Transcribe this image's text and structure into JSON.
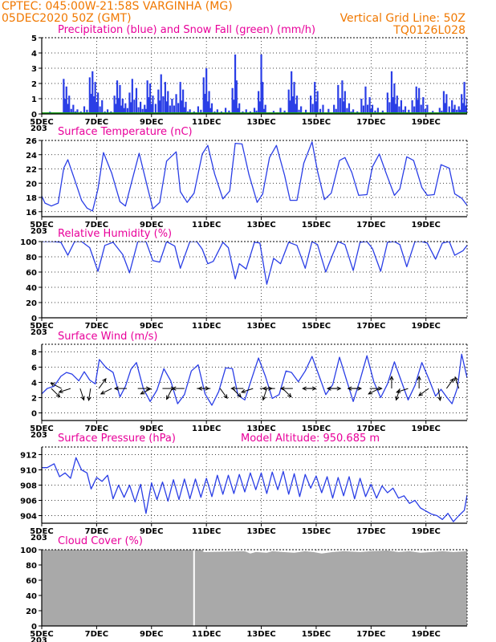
{
  "header": {
    "left_line1": "CPTEC:   045:00W-21:58S   VARGINHA (MG)",
    "left_line2": "05DEC2020 50Z (GMT)",
    "right_line1": "Vertical Grid Line: 50Z",
    "right_line2": "TQ0126L028"
  },
  "colors": {
    "header": "#f07800",
    "title": "#e8009a",
    "line": "#2a3ee6",
    "snow": "#1aa01a",
    "cloud": "#a9a9a9"
  },
  "x_axis": {
    "ticks": [
      "5DEC",
      "7DEC",
      "9DEC",
      "11DEC",
      "13DEC",
      "15DEC",
      "17DEC",
      "19DEC"
    ],
    "stub": "203"
  },
  "chart_data": [
    {
      "id": "precip",
      "type": "bar",
      "title": "Precipitation (blue) and Snow Fall (green) (mm/h)",
      "yticks": [
        "0",
        "1",
        "2",
        "3",
        "4",
        "5"
      ],
      "ylim": [
        0,
        5
      ],
      "xlim": [
        0,
        15.5
      ],
      "grid": true,
      "peaks": [
        [
          0.0,
          0.1
        ],
        [
          0.3,
          0.15
        ],
        [
          0.55,
          0.1
        ],
        [
          0.8,
          2.3
        ],
        [
          0.9,
          1.8
        ],
        [
          1.0,
          1.2
        ],
        [
          1.15,
          0.6
        ],
        [
          1.3,
          0.3
        ],
        [
          1.55,
          0.5
        ],
        [
          1.75,
          2.4
        ],
        [
          1.85,
          2.8
        ],
        [
          1.95,
          2.1
        ],
        [
          2.05,
          1.4
        ],
        [
          2.2,
          0.9
        ],
        [
          2.4,
          0.3
        ],
        [
          2.65,
          1.2
        ],
        [
          2.75,
          2.2
        ],
        [
          2.85,
          1.9
        ],
        [
          2.95,
          1.0
        ],
        [
          3.05,
          0.7
        ],
        [
          3.2,
          1.4
        ],
        [
          3.3,
          2.3
        ],
        [
          3.45,
          1.7
        ],
        [
          3.6,
          0.8
        ],
        [
          3.75,
          0.6
        ],
        [
          3.85,
          2.2
        ],
        [
          3.95,
          2.0
        ],
        [
          4.05,
          1.2
        ],
        [
          4.25,
          1.6
        ],
        [
          4.35,
          2.6
        ],
        [
          4.5,
          2.1
        ],
        [
          4.6,
          1.5
        ],
        [
          4.75,
          1.0
        ],
        [
          4.9,
          1.3
        ],
        [
          5.05,
          2.1
        ],
        [
          5.15,
          1.6
        ],
        [
          5.25,
          0.8
        ],
        [
          5.4,
          0.3
        ],
        [
          5.7,
          0.5
        ],
        [
          5.9,
          2.4
        ],
        [
          6.0,
          3.0
        ],
        [
          6.1,
          1.5
        ],
        [
          6.2,
          0.7
        ],
        [
          6.4,
          0.3
        ],
        [
          6.7,
          0.4
        ],
        [
          6.95,
          1.7
        ],
        [
          7.05,
          3.9
        ],
        [
          7.1,
          2.2
        ],
        [
          7.2,
          0.7
        ],
        [
          7.45,
          0.3
        ],
        [
          7.75,
          0.4
        ],
        [
          7.9,
          1.5
        ],
        [
          8.0,
          3.9
        ],
        [
          8.05,
          2.1
        ],
        [
          8.15,
          0.6
        ],
        [
          8.45,
          0.2
        ],
        [
          8.7,
          0.4
        ],
        [
          9.0,
          1.6
        ],
        [
          9.1,
          2.8
        ],
        [
          9.2,
          2.1
        ],
        [
          9.3,
          1.2
        ],
        [
          9.45,
          0.5
        ],
        [
          9.8,
          1.2
        ],
        [
          9.95,
          2.1
        ],
        [
          10.05,
          1.5
        ],
        [
          10.25,
          0.6
        ],
        [
          10.65,
          0.6
        ],
        [
          10.8,
          1.9
        ],
        [
          10.95,
          2.2
        ],
        [
          11.05,
          1.5
        ],
        [
          11.2,
          0.7
        ],
        [
          11.35,
          0.3
        ],
        [
          11.65,
          1.0
        ],
        [
          11.8,
          1.8
        ],
        [
          11.95,
          1.1
        ],
        [
          12.05,
          0.6
        ],
        [
          12.25,
          0.4
        ],
        [
          12.6,
          1.4
        ],
        [
          12.75,
          2.8
        ],
        [
          12.85,
          2.0
        ],
        [
          12.95,
          1.2
        ],
        [
          13.1,
          0.9
        ],
        [
          13.25,
          0.5
        ],
        [
          13.5,
          0.9
        ],
        [
          13.65,
          1.8
        ],
        [
          13.75,
          1.7
        ],
        [
          13.9,
          1.1
        ],
        [
          14.05,
          0.6
        ],
        [
          14.25,
          0.2
        ],
        [
          14.5,
          0.4
        ],
        [
          14.65,
          1.5
        ],
        [
          14.75,
          1.3
        ],
        [
          14.95,
          0.9
        ],
        [
          15.05,
          0.6
        ],
        [
          15.2,
          0.5
        ],
        [
          15.3,
          1.3
        ],
        [
          15.4,
          2.1
        ],
        [
          15.5,
          1.0
        ]
      ],
      "snow_values": [
        0.05,
        0.05
      ]
    },
    {
      "id": "temp",
      "type": "line",
      "title": "Surface Temperature (nC)",
      "yticks": [
        "16",
        "18",
        "20",
        "22",
        "24",
        "26"
      ],
      "ylim": [
        15.3,
        26
      ],
      "xlim": [
        0,
        15.5
      ],
      "grid": true,
      "x": [
        0.0,
        0.12,
        0.35,
        0.6,
        0.8,
        0.95,
        1.2,
        1.45,
        1.65,
        1.85,
        2.05,
        2.25,
        2.55,
        2.85,
        3.05,
        3.3,
        3.55,
        3.85,
        4.05,
        4.3,
        4.55,
        4.9,
        5.05,
        5.3,
        5.55,
        5.85,
        6.05,
        6.3,
        6.6,
        6.85,
        7.05,
        7.3,
        7.55,
        7.85,
        8.05,
        8.3,
        8.55,
        8.85,
        9.05,
        9.3,
        9.55,
        9.85,
        10.05,
        10.3,
        10.55,
        10.85,
        11.05,
        11.3,
        11.55,
        11.85,
        12.05,
        12.3,
        12.55,
        12.85,
        13.05,
        13.3,
        13.55,
        13.85,
        14.05,
        14.3,
        14.55,
        14.85,
        15.05,
        15.3,
        15.5
      ],
      "y": [
        18.2,
        17.2,
        16.8,
        17.2,
        22.1,
        23.3,
        20.5,
        17.6,
        16.5,
        16.1,
        19.2,
        24.3,
        21.4,
        17.4,
        16.8,
        20.5,
        24.2,
        19.5,
        16.4,
        17.3,
        23.1,
        24.4,
        18.8,
        17.3,
        18.6,
        24.1,
        25.3,
        21.3,
        17.8,
        18.9,
        25.6,
        25.5,
        21.2,
        17.3,
        18.5,
        23.6,
        25.3,
        21.1,
        17.6,
        17.6,
        22.8,
        25.8,
        21.7,
        17.7,
        18.6,
        23.2,
        23.6,
        21.5,
        18.3,
        18.4,
        22.3,
        24.1,
        21.4,
        18.3,
        19.2,
        23.7,
        23.2,
        19.4,
        18.3,
        18.4,
        22.6,
        22.1,
        18.5,
        17.9,
        16.9
      ]
    },
    {
      "id": "rh",
      "type": "line",
      "title": "Relative Humidity (%)",
      "yticks": [
        "0",
        "20",
        "40",
        "60",
        "80",
        "100"
      ],
      "ylim": [
        0,
        100
      ],
      "xlim": [
        0,
        15.5
      ],
      "grid": true,
      "x": [
        0.0,
        0.4,
        0.7,
        0.95,
        1.2,
        1.45,
        1.75,
        2.05,
        2.3,
        2.6,
        2.95,
        3.2,
        3.5,
        3.8,
        4.05,
        4.3,
        4.55,
        4.85,
        5.05,
        5.4,
        5.65,
        5.85,
        6.05,
        6.25,
        6.6,
        6.8,
        7.05,
        7.2,
        7.45,
        7.75,
        7.95,
        8.2,
        8.45,
        8.7,
        9.0,
        9.3,
        9.6,
        9.85,
        10.05,
        10.35,
        10.6,
        10.8,
        11.05,
        11.35,
        11.6,
        11.85,
        12.05,
        12.35,
        12.6,
        12.85,
        13.05,
        13.3,
        13.6,
        13.85,
        14.05,
        14.35,
        14.6,
        14.85,
        15.05,
        15.35,
        15.5
      ],
      "y": [
        100,
        100,
        99,
        82,
        100,
        100,
        92,
        61,
        95,
        99,
        83,
        59,
        100,
        100,
        75,
        73,
        100,
        94,
        65,
        100,
        100,
        90,
        71,
        74,
        99,
        92,
        51,
        71,
        64,
        99,
        98,
        44,
        78,
        71,
        99,
        95,
        65,
        100,
        96,
        60,
        83,
        100,
        96,
        62,
        99,
        100,
        91,
        61,
        99,
        100,
        96,
        67,
        100,
        100,
        98,
        77,
        98,
        100,
        82,
        88,
        95
      ]
    },
    {
      "id": "wind",
      "type": "line",
      "title": "Surface Wind (m/s)",
      "yticks": [
        "0",
        "2",
        "4",
        "6",
        "8"
      ],
      "ylim": [
        -1,
        9
      ],
      "xlim": [
        0,
        15.5
      ],
      "grid": true,
      "x": [
        0.0,
        0.2,
        0.45,
        0.7,
        0.9,
        1.1,
        1.35,
        1.55,
        1.75,
        1.95,
        2.1,
        2.35,
        2.6,
        2.85,
        3.05,
        3.25,
        3.45,
        3.7,
        3.95,
        4.2,
        4.45,
        4.7,
        4.95,
        5.2,
        5.45,
        5.7,
        5.95,
        6.2,
        6.45,
        6.7,
        6.95,
        7.15,
        7.4,
        7.65,
        7.9,
        8.15,
        8.4,
        8.65,
        8.9,
        9.1,
        9.35,
        9.6,
        9.85,
        10.1,
        10.35,
        10.6,
        10.85,
        11.1,
        11.35,
        11.6,
        11.85,
        12.1,
        12.35,
        12.6,
        12.85,
        13.1,
        13.35,
        13.6,
        13.85,
        14.1,
        14.35,
        14.55,
        14.75,
        14.95,
        15.15,
        15.3,
        15.5
      ],
      "y": [
        2.5,
        3.2,
        3.5,
        4.8,
        5.3,
        5.1,
        4.2,
        5.4,
        4.3,
        3.8,
        7.0,
        5.9,
        5.3,
        2.1,
        3.5,
        5.7,
        6.6,
        3.2,
        1.5,
        3.0,
        5.8,
        4.2,
        1.2,
        2.4,
        5.5,
        6.3,
        2.5,
        1.0,
        2.8,
        5.9,
        5.8,
        2.3,
        1.7,
        4.5,
        7.2,
        4.8,
        1.9,
        2.4,
        5.5,
        5.3,
        4.1,
        5.5,
        7.4,
        4.9,
        2.4,
        3.7,
        7.3,
        4.4,
        1.5,
        4.3,
        7.5,
        4.1,
        2.0,
        3.8,
        6.7,
        4.2,
        1.7,
        3.6,
        6.6,
        4.5,
        2.2,
        3.1,
        2.1,
        1.2,
        3.3,
        7.7,
        4.6
      ],
      "arrows": [
        [
          0.35,
          0.25
        ],
        [
          0.72,
          -0.85
        ],
        [
          1.05,
          0.9
        ],
        [
          1.4,
          0.4
        ],
        [
          1.78,
          0.55
        ],
        [
          2.08,
          -0.3
        ],
        [
          2.55,
          0.85
        ],
        [
          3.1,
          1.0
        ],
        [
          3.5,
          0.0
        ],
        [
          4.0,
          0.85
        ],
        [
          4.4,
          0.0
        ],
        [
          4.75,
          0.65
        ],
        [
          5.2,
          1.0
        ],
        [
          5.65,
          0.0
        ],
        [
          6.15,
          1.0
        ],
        [
          6.5,
          0.3
        ],
        [
          6.95,
          0.25
        ],
        [
          7.35,
          1.0
        ],
        [
          7.7,
          0.9
        ],
        [
          7.95,
          0.0
        ],
        [
          8.2,
          0.6
        ],
        [
          8.5,
          1.0
        ],
        [
          8.78,
          0.25
        ],
        [
          9.15,
          1.0
        ],
        [
          9.55,
          0.0
        ],
        [
          9.95,
          1.0
        ],
        [
          10.45,
          0.0
        ],
        [
          10.85,
          1.0
        ],
        [
          11.2,
          0.0
        ],
        [
          11.6,
          1.0
        ],
        [
          11.95,
          0.0
        ],
        [
          12.3,
          0.85
        ],
        [
          12.75,
          -0.5
        ],
        [
          13.05,
          0.6
        ],
        [
          13.35,
          0.9
        ],
        [
          13.75,
          -0.5
        ],
        [
          14.1,
          0.8
        ],
        [
          14.45,
          0.45
        ],
        [
          14.75,
          -0.3
        ],
        [
          15.2,
          -0.6
        ]
      ]
    },
    {
      "id": "pressure",
      "type": "line",
      "title": "Surface Pressure (hPa)",
      "subtitle": "Model Altitude: 950.685 m",
      "yticks": [
        "904",
        "906",
        "908",
        "910",
        "912"
      ],
      "ylim": [
        903,
        913
      ],
      "xlim": [
        0,
        15.5
      ],
      "grid": true,
      "x": [
        0.0,
        0.2,
        0.45,
        0.65,
        0.85,
        1.05,
        1.25,
        1.45,
        1.65,
        1.8,
        2.0,
        2.2,
        2.4,
        2.6,
        2.8,
        3.0,
        3.2,
        3.4,
        3.6,
        3.8,
        4.0,
        4.2,
        4.4,
        4.6,
        4.8,
        5.0,
        5.2,
        5.4,
        5.6,
        5.8,
        6.0,
        6.2,
        6.4,
        6.6,
        6.8,
        7.0,
        7.2,
        7.4,
        7.6,
        7.8,
        8.0,
        8.2,
        8.4,
        8.6,
        8.8,
        9.0,
        9.2,
        9.4,
        9.6,
        9.8,
        10.0,
        10.2,
        10.4,
        10.6,
        10.8,
        11.0,
        11.2,
        11.4,
        11.6,
        11.8,
        12.0,
        12.2,
        12.4,
        12.6,
        12.8,
        13.0,
        13.2,
        13.4,
        13.6,
        13.8,
        14.0,
        14.2,
        14.4,
        14.6,
        14.8,
        15.0,
        15.2,
        15.4,
        15.5
      ],
      "y": [
        910.3,
        910.3,
        910.8,
        909.1,
        909.6,
        908.9,
        911.6,
        910.0,
        909.6,
        907.5,
        909.0,
        908.5,
        909.3,
        906.2,
        908.0,
        906.4,
        908.0,
        905.8,
        908.1,
        904.3,
        908.3,
        906.1,
        908.4,
        905.9,
        908.7,
        906.1,
        908.8,
        906.2,
        908.8,
        906.4,
        908.9,
        906.5,
        909.3,
        906.8,
        909.3,
        906.9,
        909.4,
        907.1,
        909.6,
        907.4,
        909.6,
        906.9,
        909.7,
        907.4,
        909.8,
        906.8,
        909.5,
        906.5,
        909.4,
        907.6,
        909.2,
        907.0,
        909.1,
        906.3,
        909.0,
        906.6,
        909.1,
        906.2,
        908.9,
        906.5,
        908.1,
        906.3,
        907.9,
        907.0,
        907.6,
        906.3,
        906.6,
        905.6,
        906.0,
        905.0,
        904.6,
        904.2,
        904.0,
        903.5,
        904.3,
        903.2,
        904.0,
        904.7,
        906.7
      ]
    },
    {
      "id": "cloud",
      "type": "area",
      "title": "Cloud Cover (%)",
      "yticks": [
        "0",
        "20",
        "40",
        "60",
        "80",
        "100"
      ],
      "ylim": [
        0,
        100
      ],
      "xlim": [
        0,
        15.5
      ],
      "grid": true,
      "x": [
        0.0,
        5.85,
        5.9,
        7.4,
        7.6,
        7.8,
        8.2,
        8.4,
        8.8,
        9.2,
        9.6,
        9.9,
        10.2,
        10.6,
        11.0,
        11.6,
        12.0,
        12.6,
        13.0,
        13.4,
        13.8,
        14.2,
        14.6,
        15.0,
        15.5
      ],
      "y": [
        100,
        100,
        97,
        98,
        95,
        97,
        96,
        98,
        97,
        96,
        98,
        97,
        95,
        97,
        98,
        97,
        98,
        99,
        97,
        98,
        96,
        97,
        98,
        97,
        98
      ],
      "gap_x": 5.55
    }
  ]
}
